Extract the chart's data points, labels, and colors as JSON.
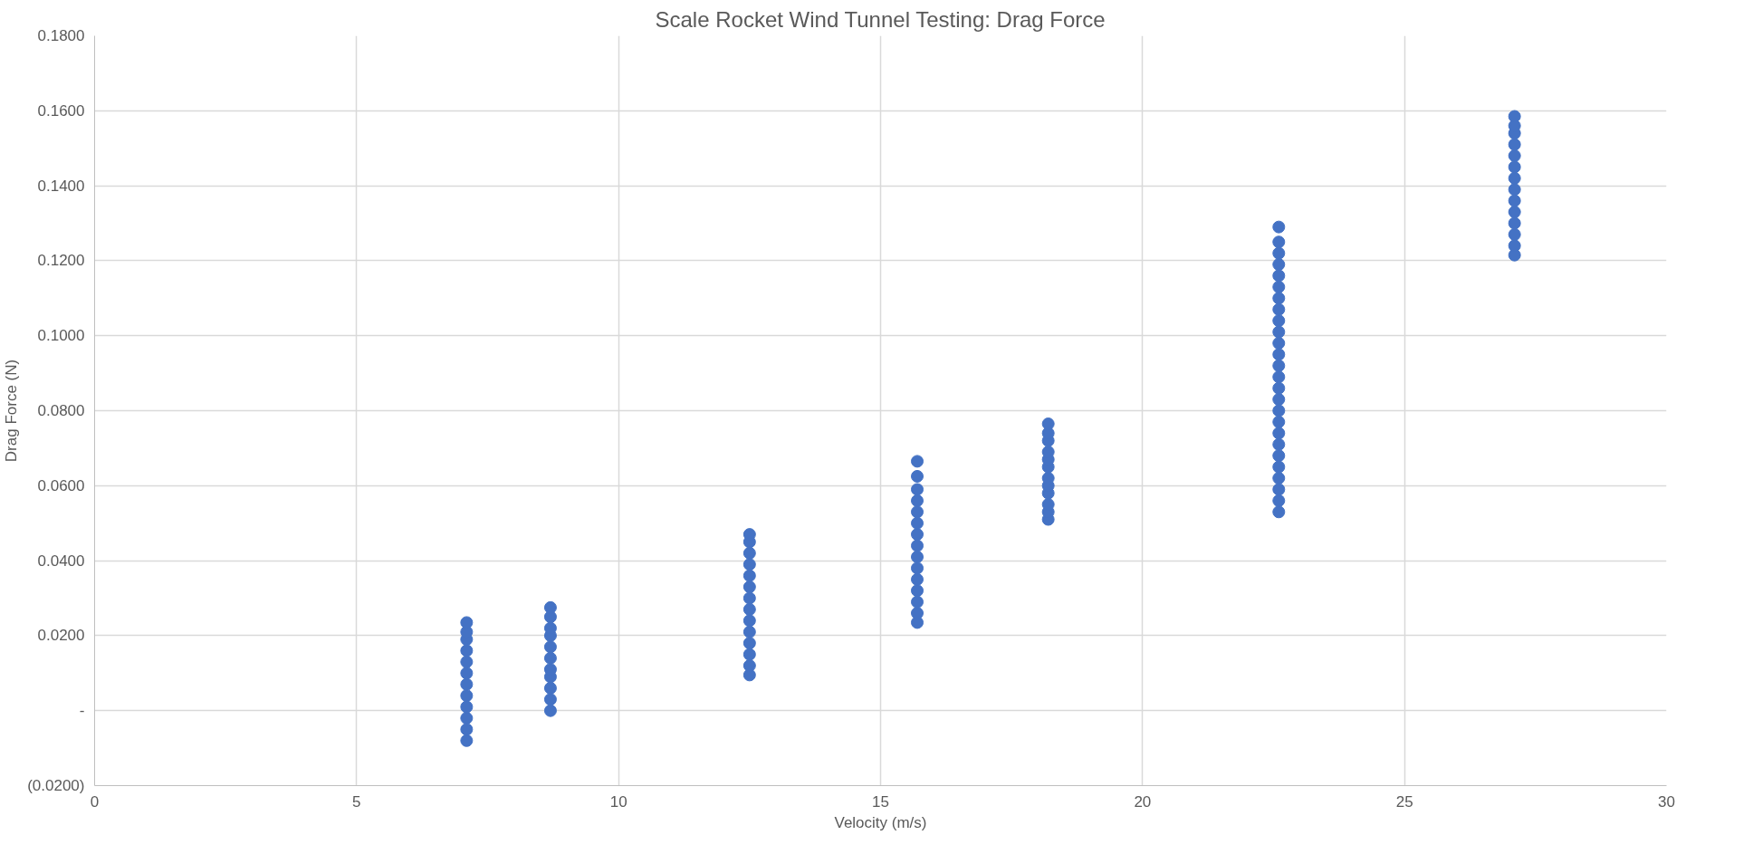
{
  "chart_data": {
    "type": "scatter",
    "title": "Scale Rocket Wind Tunnel Testing: Drag Force",
    "xlabel": "Velocity (m/s)",
    "ylabel": "Drag Force (N)",
    "xlim": [
      0,
      30
    ],
    "xticks": [
      0,
      5,
      10,
      15,
      20,
      25,
      30
    ],
    "ylim": [
      -0.02,
      0.18
    ],
    "yticks": [
      {
        "value": -0.02,
        "label": "(0.0200)"
      },
      {
        "value": 0,
        "label": "-"
      },
      {
        "value": 0.02,
        "label": "0.0200"
      },
      {
        "value": 0.04,
        "label": "0.0400"
      },
      {
        "value": 0.06,
        "label": "0.0600"
      },
      {
        "value": 0.08,
        "label": "0.0800"
      },
      {
        "value": 0.1,
        "label": "0.1000"
      },
      {
        "value": 0.12,
        "label": "0.1200"
      },
      {
        "value": 0.14,
        "label": "0.1400"
      },
      {
        "value": 0.16,
        "label": "0.1600"
      },
      {
        "value": 0.18,
        "label": "0.1800"
      }
    ],
    "grid": true,
    "marker": "circle",
    "series": [
      {
        "color": "#4472c4",
        "x": [
          7.1,
          7.1,
          7.1,
          7.1,
          7.1,
          7.1,
          7.1,
          7.1,
          7.1,
          7.1,
          7.1,
          7.1,
          8.7,
          8.7,
          8.7,
          8.7,
          8.7,
          8.7,
          8.7,
          8.7,
          8.7,
          8.7,
          8.7,
          12.5,
          12.5,
          12.5,
          12.5,
          12.5,
          12.5,
          12.5,
          12.5,
          12.5,
          12.5,
          12.5,
          12.5,
          12.5,
          12.5,
          15.7,
          15.7,
          15.7,
          15.7,
          15.7,
          15.7,
          15.7,
          15.7,
          15.7,
          15.7,
          15.7,
          15.7,
          15.7,
          15.7,
          15.7,
          18.2,
          18.2,
          18.2,
          18.2,
          18.2,
          18.2,
          18.2,
          18.2,
          18.2,
          18.2,
          18.2,
          18.2,
          22.6,
          22.6,
          22.6,
          22.6,
          22.6,
          22.6,
          22.6,
          22.6,
          22.6,
          22.6,
          22.6,
          22.6,
          22.6,
          22.6,
          22.6,
          22.6,
          22.6,
          22.6,
          22.6,
          22.6,
          22.6,
          22.6,
          22.6,
          22.6,
          22.6,
          22.6,
          27.1,
          27.1,
          27.1,
          27.1,
          27.1,
          27.1,
          27.1,
          27.1,
          27.1,
          27.1,
          27.1,
          27.1,
          27.1,
          27.1
        ],
        "values": [
          -0.008,
          -0.005,
          -0.002,
          0.001,
          0.004,
          0.007,
          0.01,
          0.013,
          0.016,
          0.019,
          0.021,
          0.0235,
          0,
          0.003,
          0.006,
          0.009,
          0.011,
          0.014,
          0.017,
          0.02,
          0.022,
          0.025,
          0.0275,
          0.0095,
          0.012,
          0.015,
          0.018,
          0.021,
          0.024,
          0.027,
          0.03,
          0.033,
          0.036,
          0.039,
          0.042,
          0.045,
          0.047,
          0.0235,
          0.026,
          0.029,
          0.032,
          0.035,
          0.038,
          0.041,
          0.044,
          0.047,
          0.05,
          0.053,
          0.056,
          0.059,
          0.0625,
          0.0665,
          0.051,
          0.053,
          0.055,
          0.058,
          0.06,
          0.062,
          0.065,
          0.067,
          0.069,
          0.072,
          0.074,
          0.0765,
          0.053,
          0.056,
          0.059,
          0.062,
          0.065,
          0.068,
          0.071,
          0.074,
          0.077,
          0.08,
          0.083,
          0.086,
          0.089,
          0.092,
          0.095,
          0.098,
          0.101,
          0.104,
          0.107,
          0.11,
          0.113,
          0.116,
          0.119,
          0.122,
          0.125,
          0.129,
          0.1215,
          0.124,
          0.127,
          0.13,
          0.133,
          0.136,
          0.139,
          0.142,
          0.145,
          0.148,
          0.151,
          0.154,
          0.156,
          0.1585
        ]
      }
    ]
  }
}
